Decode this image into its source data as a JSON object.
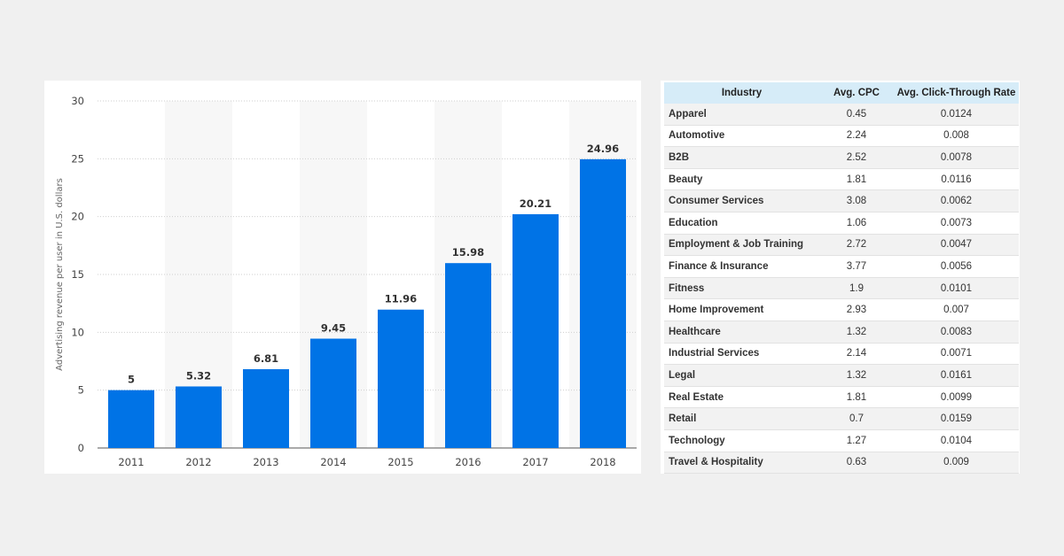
{
  "chart_data": {
    "type": "bar",
    "categories": [
      "2011",
      "2012",
      "2013",
      "2014",
      "2015",
      "2016",
      "2017",
      "2018"
    ],
    "values": [
      5,
      5.32,
      6.81,
      9.45,
      11.96,
      15.98,
      20.21,
      24.96
    ],
    "value_labels": [
      "5",
      "5.32",
      "6.81",
      "9.45",
      "11.96",
      "15.98",
      "20.21",
      "24.96"
    ],
    "title": "",
    "xlabel": "",
    "ylabel": "Advertising revenue per user in U.S. dollars",
    "ylim": [
      0,
      30
    ],
    "yticks": [
      "0",
      "5",
      "10",
      "15",
      "20",
      "25",
      "30"
    ],
    "grid": true,
    "bar_color": "#0073e6"
  },
  "table": {
    "headers": [
      "Industry",
      "Avg. CPC",
      "Avg. Click-Through Rate"
    ],
    "rows": [
      [
        "Apparel",
        "0.45",
        "0.0124"
      ],
      [
        "Automotive",
        "2.24",
        "0.008"
      ],
      [
        "B2B",
        "2.52",
        "0.0078"
      ],
      [
        "Beauty",
        "1.81",
        "0.0116"
      ],
      [
        "Consumer Services",
        "3.08",
        "0.0062"
      ],
      [
        "Education",
        "1.06",
        "0.0073"
      ],
      [
        "Employment & Job Training",
        "2.72",
        "0.0047"
      ],
      [
        "Finance & Insurance",
        "3.77",
        "0.0056"
      ],
      [
        "Fitness",
        "1.9",
        "0.0101"
      ],
      [
        "Home Improvement",
        "2.93",
        "0.007"
      ],
      [
        "Healthcare",
        "1.32",
        "0.0083"
      ],
      [
        "Industrial Services",
        "2.14",
        "0.0071"
      ],
      [
        "Legal",
        "1.32",
        "0.0161"
      ],
      [
        "Real Estate",
        "1.81",
        "0.0099"
      ],
      [
        "Retail",
        "0.7",
        "0.0159"
      ],
      [
        "Technology",
        "1.27",
        "0.0104"
      ],
      [
        "Travel & Hospitality",
        "0.63",
        "0.009"
      ]
    ],
    "header_color": "#d6ecf8"
  }
}
